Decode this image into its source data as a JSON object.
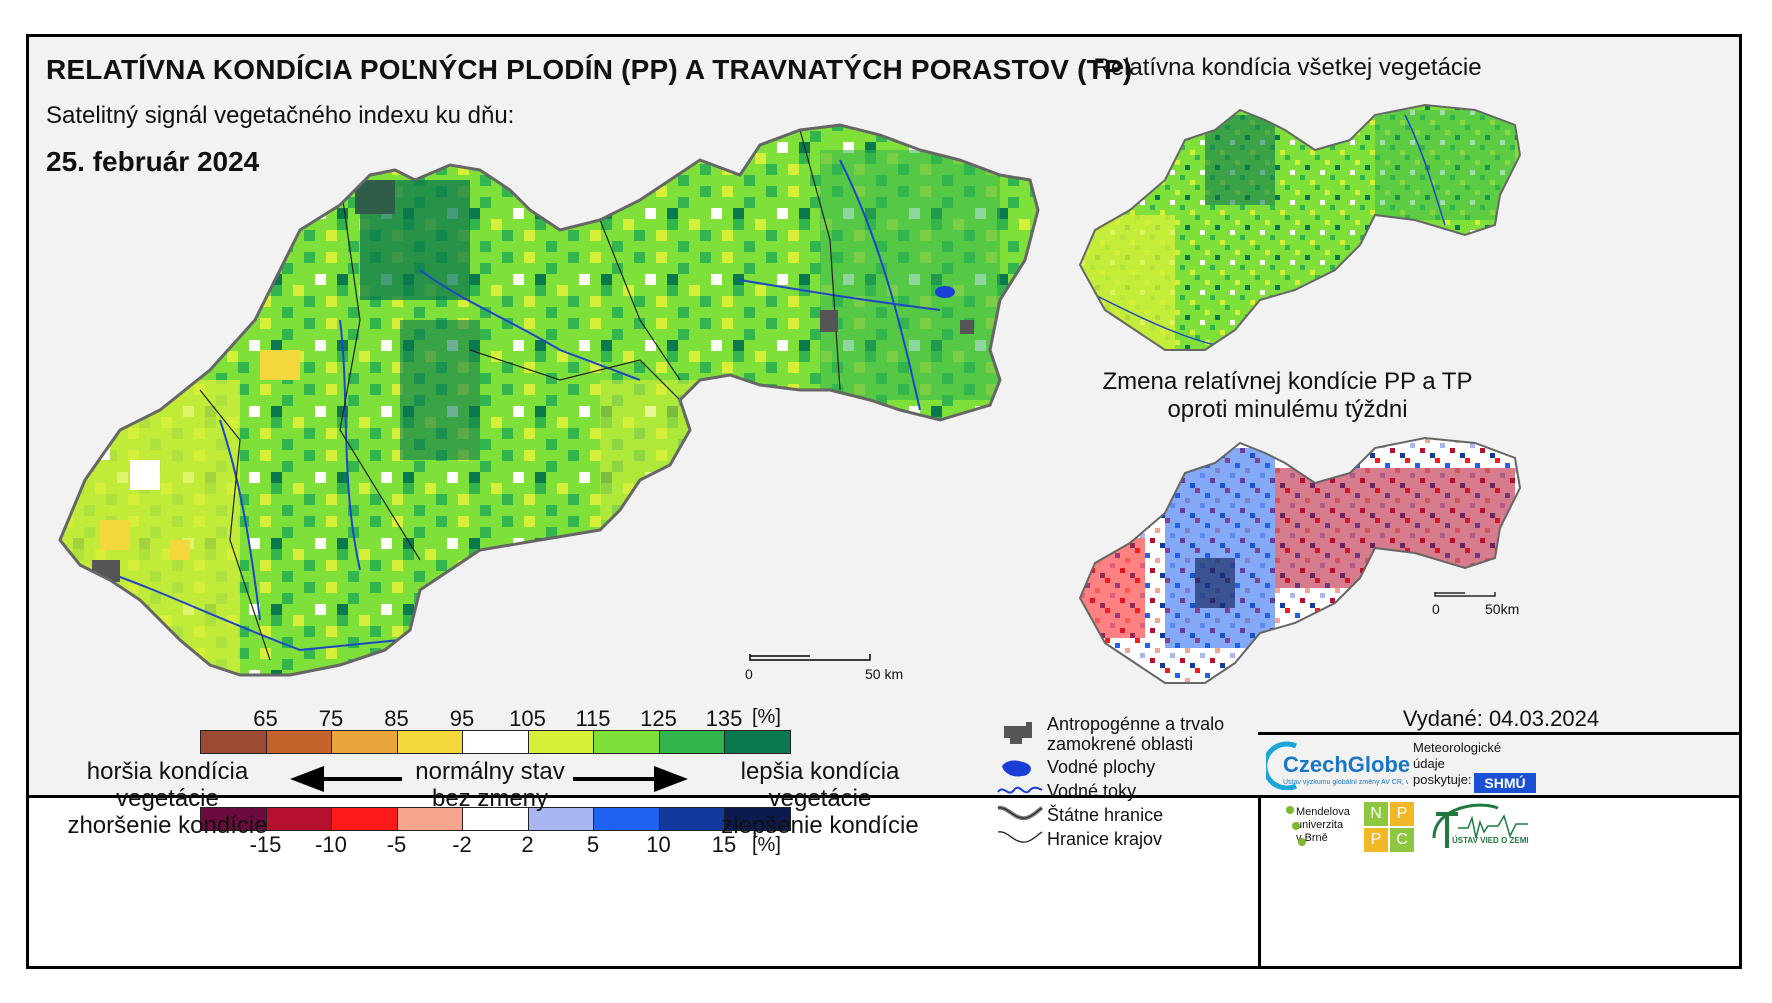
{
  "title": "RELATÍVNA KONDÍCIA POĽNÝCH PLODÍN (PP) A TRAVNATÝCH PORASTOV (TP)",
  "subtitle": "Satelitný signál vegetačného indexu ku dňu:",
  "date": "25. február 2024",
  "right_top_title": "Relatívna kondícia všetkej vegetácie",
  "right_bottom_title_1": "Zmena relatívnej kondície PP a TP",
  "right_bottom_title_2": "oproti minulému týždni",
  "main_scale": {
    "zero": "0",
    "end": "50 km"
  },
  "small_scale": {
    "zero": "0",
    "end": "50km"
  },
  "condition_legend": {
    "ticks": [
      "65",
      "75",
      "85",
      "95",
      "105",
      "115",
      "125",
      "135"
    ],
    "unit": "[%]",
    "colors": [
      "#9b4a34",
      "#c2642b",
      "#e8a53a",
      "#f3d73d",
      "#ffffff",
      "#d6f03a",
      "#7fe03a",
      "#33b54e",
      "#0a7a4e"
    ]
  },
  "change_legend": {
    "ticks": [
      "-15",
      "-10",
      "-5",
      "-2",
      "2",
      "5",
      "10",
      "15"
    ],
    "unit": "[%]",
    "colors": [
      "#6b0a3c",
      "#b5102e",
      "#ff1a1a",
      "#f6a58f",
      "#ffffff",
      "#a8b6f2",
      "#1f62f0",
      "#123a9e",
      "#0b1a4f"
    ]
  },
  "labels": {
    "worse_1": "horšia kondícia vegetácie",
    "worse_2": "zhoršenie kondície",
    "normal_1": "normálny stav",
    "normal_2": "bez zmeny",
    "better_1": "lepšia kondícia vegetácie",
    "better_2": "zlepšenie kondície"
  },
  "map_legend": [
    {
      "icon": "urban-area-icon",
      "label": "Antropogénne a trvalo zamokrené oblasti"
    },
    {
      "icon": "water-body-icon",
      "label": "Vodné plochy"
    },
    {
      "icon": "river-icon",
      "label": "Vodné toky"
    },
    {
      "icon": "state-border-icon",
      "label": "Štátne hranice"
    },
    {
      "icon": "region-border-icon",
      "label": "Hranice krajov"
    }
  ],
  "issued": "Vydané: 04.03.2024",
  "logos": {
    "czechglobe": "CzechGlobe",
    "czechglobe_sub": "Ústav výzkumu globální změny AV ČR, v. v. i.",
    "meteo_1": "Meteorologické",
    "meteo_2": "údaje",
    "meteo_3": "poskytuje:",
    "shmu": "SHMÚ",
    "mendel_1": "Mendelova",
    "mendel_2": "univerzita",
    "mendel_3": "v Brně",
    "nppc": [
      "N",
      "P",
      "P",
      "C"
    ],
    "uvz": "ÚSTAV VIED O ZEMI"
  }
}
